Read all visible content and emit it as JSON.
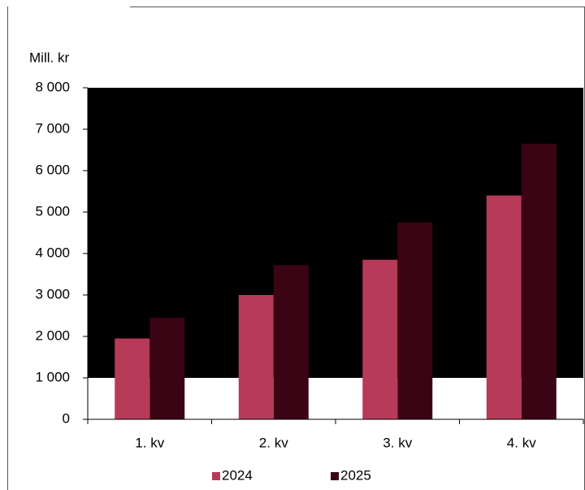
{
  "chart_data": {
    "type": "bar",
    "y_label": "Mill. kr",
    "categories": [
      "1. kv",
      "2. kv",
      "3. kv",
      "4. kv"
    ],
    "series": [
      {
        "name": "2024",
        "color": "#b73a58",
        "values": [
          1950,
          3000,
          3850,
          5400
        ]
      },
      {
        "name": "2025",
        "color": "#3a0414",
        "values": [
          2450,
          3720,
          4750,
          6650
        ]
      }
    ],
    "ylim": [
      0,
      8000
    ],
    "yticks": [
      0,
      {
        "value": 1000,
        "label": "1 000"
      },
      {
        "value": 2000,
        "label": "2 000"
      },
      {
        "value": 3000,
        "label": "3 000"
      },
      {
        "value": 4000,
        "label": "4 000"
      },
      {
        "value": 5000,
        "label": "5 000"
      },
      {
        "value": 6000,
        "label": "6 000"
      },
      {
        "value": 7000,
        "label": "7 000"
      },
      {
        "value": 8000,
        "label": "8 000"
      }
    ],
    "legend": "bottom"
  }
}
